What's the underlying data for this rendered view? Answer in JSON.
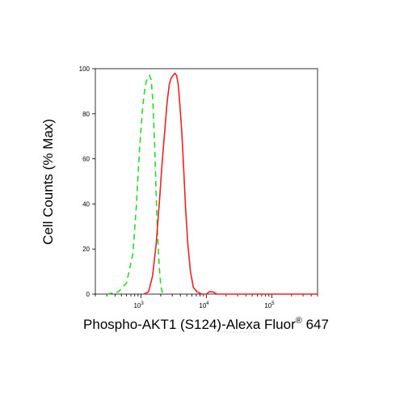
{
  "chart_data": {
    "type": "line",
    "xlabel": "Phospho-AKT1 (S124)-Alexa Fluor",
    "xlabel_superscript": "®",
    "xlabel_suffix": " 647",
    "ylabel": "Cell Counts (% Max)",
    "x_scale": "log",
    "xlim": [
      200,
      500000
    ],
    "ylim": [
      0,
      100
    ],
    "y_ticks": [
      "0",
      "20",
      "40",
      "60",
      "80",
      "100"
    ],
    "x_ticks": [
      {
        "value": 1000,
        "base": "10",
        "exp": "3"
      },
      {
        "value": 10000,
        "base": "10",
        "exp": "4"
      },
      {
        "value": 100000,
        "base": "10",
        "exp": "5"
      }
    ],
    "grid": false,
    "series": [
      {
        "color": "#22dd22",
        "dash": "dashed",
        "points": [
          [
            300,
            0
          ],
          [
            450,
            1
          ],
          [
            600,
            5
          ],
          [
            750,
            18
          ],
          [
            850,
            40
          ],
          [
            950,
            65
          ],
          [
            1050,
            82
          ],
          [
            1150,
            92
          ],
          [
            1250,
            96
          ],
          [
            1350,
            97
          ],
          [
            1430,
            95
          ],
          [
            1520,
            85
          ],
          [
            1620,
            65
          ],
          [
            1700,
            45
          ],
          [
            1800,
            25
          ],
          [
            1900,
            12
          ],
          [
            2000,
            4
          ],
          [
            2100,
            1
          ],
          [
            2250,
            0
          ]
        ]
      },
      {
        "color": "#ee2222",
        "dash": "solid",
        "points": [
          [
            1100,
            0
          ],
          [
            1300,
            1
          ],
          [
            1500,
            8
          ],
          [
            1700,
            22
          ],
          [
            1900,
            40
          ],
          [
            2100,
            58
          ],
          [
            2300,
            72
          ],
          [
            2500,
            85
          ],
          [
            2700,
            93
          ],
          [
            2900,
            96
          ],
          [
            3100,
            97
          ],
          [
            3300,
            98
          ],
          [
            3500,
            97
          ],
          [
            3700,
            93
          ],
          [
            3900,
            85
          ],
          [
            4200,
            72
          ],
          [
            4500,
            55
          ],
          [
            4800,
            38
          ],
          [
            5200,
            22
          ],
          [
            5700,
            10
          ],
          [
            6300,
            3
          ],
          [
            7200,
            1
          ],
          [
            8500,
            0
          ],
          [
            10000,
            0
          ],
          [
            11000,
            1
          ],
          [
            12500,
            1
          ],
          [
            14500,
            0
          ],
          [
            30000,
            0
          ],
          [
            100000,
            0
          ],
          [
            500000,
            0
          ]
        ]
      }
    ]
  }
}
